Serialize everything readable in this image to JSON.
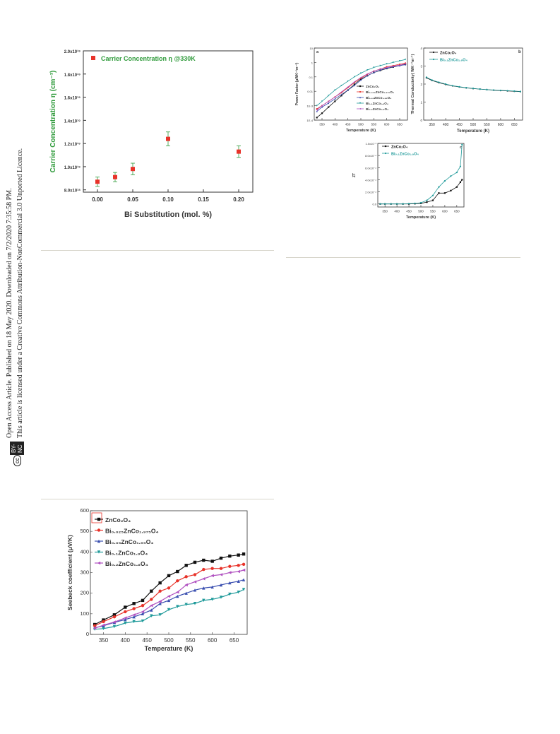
{
  "sidebar": {
    "line1": "Open Access Article. Published on 18 May 2020. Downloaded on 7/2/2020 7:35:58 PM.",
    "line2": "This article is licensed under a Creative Commons Attribution-NonCommercial 3.0 Unported Licence.",
    "badge_cc": "cc",
    "badge_bync": "BY-NC"
  },
  "fig_carrier": {
    "legend": "Carrier Concentration η @330K",
    "xlabel": "Bi Substitution (mol. %)",
    "ylabel": "Carrier Concentration η (cm⁻³)",
    "xticks": [
      "0.00",
      "0.05",
      "0.10",
      "0.15",
      "0.20"
    ],
    "yticks": [
      "8.0x10¹⁸",
      "1.0x10¹⁹",
      "1.2x10¹⁹",
      "1.4x10¹⁹",
      "1.6x10¹⁹",
      "1.8x10¹⁹",
      "2.0x10¹⁹"
    ],
    "colors": {
      "marker": "#e8332a",
      "text": "#2e9a3a",
      "errbar": "#2e9a3a"
    }
  },
  "fig_pf": {
    "panel_letter": "a",
    "xlabel": "Temperature (K)",
    "ylabel": "Power Factor (μWK⁻²m⁻¹)",
    "xticks": [
      "350",
      "400",
      "450",
      "500",
      "550",
      "600",
      "650"
    ],
    "yticks": [
      "1E-4",
      "1E-3",
      "0.01",
      "0.1",
      "1",
      "10"
    ],
    "legend": [
      "ZnCo₂O₄",
      "Bi₀.₀₂₅ZnCo₁.₉₇₅O₄",
      "Bi₀.₀₅ZnCo₁.₉₅O₄",
      "Bi₀.₁ZnCo₁.₉O₄",
      "Bi₀.₂ZnCo₁.₈O₄"
    ]
  },
  "fig_tc": {
    "panel_letter": "b",
    "xlabel": "Temperature (K)",
    "ylabel": "Thermal Conductivity( WK⁻¹m⁻¹)",
    "xticks": [
      "350",
      "400",
      "450",
      "500",
      "550",
      "600",
      "650"
    ],
    "yticks": [
      "0",
      "1",
      "2",
      "3",
      "4"
    ],
    "legend": [
      "ZnCo₂O₄",
      "Bi₀.₁ZnCo₁.₉O₄"
    ]
  },
  "fig_zt": {
    "panel_letter": "c",
    "xlabel": "Temperature (K)",
    "ylabel": "ZT",
    "xticks": [
      "350",
      "400",
      "450",
      "500",
      "550",
      "600",
      "650"
    ],
    "yticks": [
      "0.0",
      "2.0x10⁻⁴",
      "4.0x10⁻⁴",
      "6.0x10⁻⁴",
      "8.0x10⁻⁴",
      "1.0x10⁻³"
    ],
    "legend": [
      "ZnCo₂O₄",
      "Bi₀.₁ZnCo₁.₉O₄"
    ]
  },
  "fig_seebeck": {
    "xlabel": "Temperature (K)",
    "ylabel": "Seebeck coefficient (μV/K)",
    "xticks": [
      "350",
      "400",
      "450",
      "500",
      "550",
      "600",
      "650"
    ],
    "yticks": [
      "0",
      "100",
      "200",
      "300",
      "400",
      "500",
      "600"
    ],
    "legend": [
      "ZnCo₂O₄",
      "Bi₀.₀₂₅ZnCo₁.₉₇₅O₄",
      "Bi₀.₀₅ZnCo₁.₉₅O₄",
      "Bi₀.₁ZnCo₁.₉O₄",
      "Bi₀.₂ZnCo₁.₈O₄"
    ]
  },
  "chart_data": [
    {
      "type": "scatter",
      "xlabel": "Bi Substitution (mol. %)",
      "ylabel": "Carrier Concentration η (cm⁻³)",
      "xlim": [
        -0.02,
        0.22
      ],
      "ylim": [
        7.8e+18,
        2e+19
      ],
      "series": [
        {
          "name": "Carrier Concentration η @330K",
          "x": [
            0.0,
            0.025,
            0.05,
            0.1,
            0.2
          ],
          "y": [
            8.7e+18,
            9.1e+18,
            9.8e+18,
            1.24e+19,
            1.13e+19
          ],
          "err": [
            4e+17,
            4e+17,
            5e+17,
            6e+17,
            5e+17
          ]
        }
      ]
    },
    {
      "type": "line",
      "xlabel": "Temperature (K)",
      "ylabel": "Power Factor (μWK⁻²m⁻¹)",
      "yscale": "log",
      "xlim": [
        320,
        680
      ],
      "ylim": [
        0.0001,
        10
      ],
      "x": [
        330,
        350,
        375,
        400,
        425,
        450,
        475,
        500,
        525,
        550,
        575,
        600,
        625,
        650,
        672
      ],
      "series": [
        {
          "name": "ZnCo₂O₄",
          "values": [
            0.00015,
            0.0003,
            0.0008,
            0.002,
            0.005,
            0.012,
            0.03,
            0.07,
            0.12,
            0.2,
            0.28,
            0.38,
            0.48,
            0.6,
            0.75
          ]
        },
        {
          "name": "Bi₀.₀₂₅ZnCo₁.₉₇₅O₄",
          "values": [
            0.0006,
            0.001,
            0.002,
            0.004,
            0.008,
            0.018,
            0.04,
            0.08,
            0.15,
            0.25,
            0.35,
            0.5,
            0.6,
            0.75,
            0.9
          ]
        },
        {
          "name": "Bi₀.₀₅ZnCo₁.₉₅O₄",
          "values": [
            0.0004,
            0.0008,
            0.0015,
            0.003,
            0.006,
            0.012,
            0.025,
            0.06,
            0.12,
            0.2,
            0.3,
            0.4,
            0.5,
            0.6,
            0.7
          ]
        },
        {
          "name": "Bi₀.₁ZnCo₁.₉O₄",
          "values": [
            0.001,
            0.002,
            0.005,
            0.012,
            0.025,
            0.05,
            0.1,
            0.18,
            0.3,
            0.45,
            0.6,
            0.8,
            1.0,
            1.3,
            1.6
          ]
        },
        {
          "name": "Bi₀.₂ZnCo₁.₈O₄",
          "values": [
            0.0005,
            0.001,
            0.002,
            0.004,
            0.009,
            0.02,
            0.045,
            0.09,
            0.16,
            0.25,
            0.35,
            0.45,
            0.55,
            0.65,
            0.8
          ]
        }
      ]
    },
    {
      "type": "line",
      "xlabel": "Temperature (K)",
      "ylabel": "Thermal Conductivity( WK⁻¹m⁻¹)",
      "xlim": [
        320,
        680
      ],
      "ylim": [
        0,
        4
      ],
      "x": [
        330,
        350,
        375,
        400,
        425,
        450,
        475,
        500,
        525,
        550,
        575,
        600,
        625,
        650,
        672
      ],
      "series": [
        {
          "name": "ZnCo₂O₄",
          "values": [
            2.35,
            2.2,
            2.08,
            1.98,
            1.9,
            1.84,
            1.79,
            1.75,
            1.72,
            1.69,
            1.66,
            1.64,
            1.62,
            1.6,
            1.58
          ]
        },
        {
          "name": "Bi₀.₁ZnCo₁.₉O₄",
          "values": [
            2.38,
            2.22,
            2.1,
            2.0,
            1.91,
            1.85,
            1.8,
            1.76,
            1.72,
            1.69,
            1.67,
            1.65,
            1.63,
            1.61,
            1.59
          ]
        }
      ]
    },
    {
      "type": "line",
      "xlabel": "Temperature (K)",
      "ylabel": "ZT",
      "xlim": [
        320,
        680
      ],
      "ylim": [
        -5e-05,
        0.001
      ],
      "x": [
        330,
        350,
        375,
        400,
        425,
        450,
        475,
        500,
        525,
        550,
        575,
        600,
        625,
        650,
        665,
        672
      ],
      "series": [
        {
          "name": "ZnCo₂O₄",
          "values": [
            0,
            0,
            0,
            0,
            0,
            0,
            5e-06,
            1e-05,
            3e-05,
            6e-05,
            0.00018,
            0.00018,
            0.00022,
            0.00028,
            0.00036,
            0.0004
          ]
        },
        {
          "name": "Bi₀.₁ZnCo₁.₉O₄",
          "values": [
            0,
            0,
            0,
            0,
            0,
            5e-06,
            1e-05,
            2e-05,
            6e-05,
            0.00014,
            0.00028,
            0.00038,
            0.00046,
            0.00052,
            0.00062,
            0.00098
          ]
        }
      ]
    },
    {
      "type": "line",
      "xlabel": "Temperature (K)",
      "ylabel": "Seebeck coefficient (μV/K)",
      "xlim": [
        320,
        680
      ],
      "ylim": [
        0,
        600
      ],
      "x": [
        330,
        350,
        375,
        400,
        420,
        440,
        460,
        480,
        500,
        520,
        540,
        560,
        580,
        600,
        620,
        640,
        660,
        672
      ],
      "series": [
        {
          "name": "ZnCo₂O₄",
          "values": [
            48,
            70,
            95,
            132,
            150,
            165,
            210,
            250,
            285,
            305,
            335,
            350,
            360,
            355,
            370,
            380,
            385,
            390
          ]
        },
        {
          "name": "Bi₀.₀₂₅ZnCo₁.₉₇₅O₄",
          "values": [
            42,
            62,
            85,
            110,
            125,
            140,
            170,
            210,
            225,
            260,
            280,
            290,
            315,
            320,
            320,
            330,
            335,
            340
          ]
        },
        {
          "name": "Bi₀.₀₅ZnCo₁.₉₅O₄",
          "values": [
            32,
            42,
            58,
            72,
            85,
            100,
            118,
            150,
            165,
            185,
            200,
            215,
            225,
            230,
            240,
            250,
            258,
            265
          ]
        },
        {
          "name": "Bi₀.₁ZnCo₁.₉O₄",
          "values": [
            25,
            28,
            38,
            55,
            62,
            65,
            90,
            95,
            120,
            135,
            145,
            150,
            165,
            170,
            180,
            195,
            205,
            218
          ]
        },
        {
          "name": "Bi₀.₂ZnCo₁.₈O₄",
          "values": [
            30,
            45,
            60,
            80,
            95,
            110,
            140,
            160,
            185,
            205,
            240,
            255,
            270,
            285,
            290,
            300,
            305,
            312
          ]
        }
      ]
    }
  ]
}
